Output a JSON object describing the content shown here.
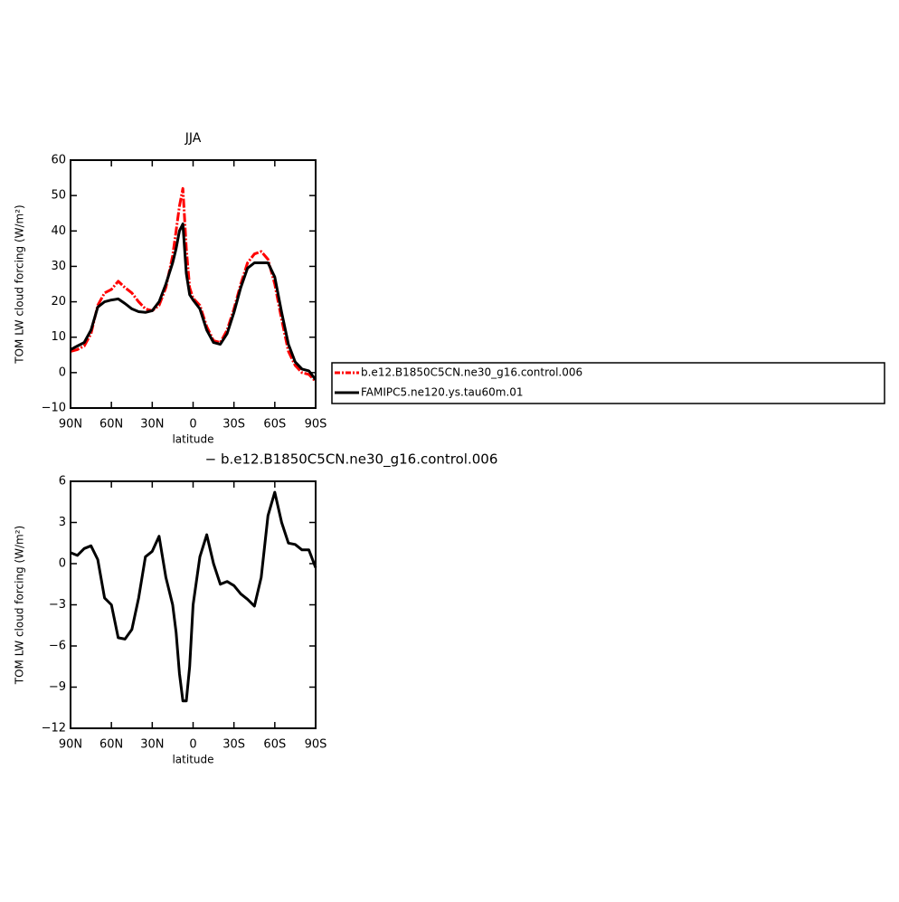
{
  "chart_data": [
    {
      "type": "line",
      "title": "JJA",
      "xlabel": "latitude",
      "ylabel": "TOM LW cloud forcing (W/m²)",
      "x": [
        90,
        85,
        80,
        75,
        70,
        65,
        60,
        55,
        50,
        45,
        40,
        35,
        30,
        25,
        20,
        15,
        12.5,
        10,
        7.5,
        5,
        2.5,
        0,
        -5,
        -10,
        -15,
        -20,
        -25,
        -30,
        -35,
        -40,
        -45,
        -50,
        -55,
        -60,
        -65,
        -70,
        -75,
        -80,
        -85,
        -90
      ],
      "xlim": [
        90,
        -90
      ],
      "xticks": [
        {
          "value": 90,
          "label": "90N"
        },
        {
          "value": 60,
          "label": "60N"
        },
        {
          "value": 30,
          "label": "30N"
        },
        0,
        {
          "value": -30,
          "label": "30S"
        },
        {
          "value": -60,
          "label": "60S"
        },
        {
          "value": -90,
          "label": "90S"
        }
      ],
      "ylim": [
        -10,
        60
      ],
      "yticks": [
        {
          "value": -10,
          "label": "−10"
        },
        0,
        10,
        20,
        30,
        40,
        50,
        60
      ],
      "legend": "right",
      "series": [
        {
          "name": "b.e12.B1850C5CN.ne30_g16.control.006",
          "color": "#ff0000",
          "dashed": true,
          "values": [
            6,
            6.5,
            7.5,
            11,
            19,
            22.5,
            23.5,
            25.8,
            24,
            22.5,
            20,
            18,
            17.5,
            19,
            24,
            33,
            40,
            47,
            52,
            35,
            24,
            21,
            19,
            13,
            9,
            8.5,
            12,
            18,
            25,
            31,
            33.5,
            34.2,
            32,
            25,
            15,
            6,
            2,
            0,
            -0.5,
            -2.5
          ]
        },
        {
          "name": "FAMIPC5.ne120.ys.tau60m.01",
          "color": "#000000",
          "dashed": false,
          "values": [
            6.5,
            7.5,
            8.5,
            12,
            18.5,
            20,
            20.5,
            20.8,
            19.5,
            18,
            17.2,
            17,
            17.5,
            20,
            25,
            31,
            35,
            40,
            42,
            28,
            22,
            20.5,
            18,
            12,
            8.5,
            8,
            11,
            17,
            24,
            29.5,
            31,
            31,
            31,
            27,
            17,
            8,
            3,
            1,
            0.5,
            -2
          ]
        }
      ]
    },
    {
      "type": "line",
      "title": "− b.e12.B1850C5CN.ne30_g16.control.006",
      "xlabel": "latitude",
      "ylabel": "TOM LW cloud forcing (W/m²)",
      "x": [
        90,
        85,
        80,
        75,
        70,
        65,
        60,
        55,
        50,
        45,
        40,
        35,
        30,
        25,
        20,
        15,
        12.5,
        10,
        7.5,
        5,
        2.5,
        0,
        -5,
        -10,
        -15,
        -20,
        -25,
        -30,
        -35,
        -40,
        -45,
        -50,
        -55,
        -60,
        -65,
        -70,
        -75,
        -80,
        -85,
        -90
      ],
      "xlim": [
        90,
        -90
      ],
      "xticks": [
        {
          "value": 90,
          "label": "90N"
        },
        {
          "value": 60,
          "label": "60N"
        },
        {
          "value": 30,
          "label": "30N"
        },
        0,
        {
          "value": -30,
          "label": "30S"
        },
        {
          "value": -60,
          "label": "60S"
        },
        {
          "value": -90,
          "label": "90S"
        }
      ],
      "ylim": [
        -12,
        6
      ],
      "yticks": [
        {
          "value": -12,
          "label": "−12"
        },
        {
          "value": -9,
          "label": "−9"
        },
        {
          "value": -6,
          "label": "−6"
        },
        {
          "value": -3,
          "label": "−3"
        },
        0,
        3,
        6
      ],
      "series": [
        {
          "color": "#000000",
          "dashed": false,
          "values": [
            0.8,
            0.6,
            1.1,
            1.3,
            0.3,
            -2.5,
            -3,
            -5.4,
            -5.5,
            -4.8,
            -2.5,
            0.5,
            0.9,
            2.0,
            -1,
            -3,
            -5,
            -8,
            -10,
            -10,
            -7.5,
            -3,
            0.5,
            2.1,
            0,
            -1.5,
            -1.3,
            -1.6,
            -2.2,
            -2.6,
            -3.1,
            -1,
            3.5,
            5.2,
            3,
            1.5,
            1.4,
            1.0,
            1.0,
            -0.3
          ]
        }
      ]
    }
  ]
}
